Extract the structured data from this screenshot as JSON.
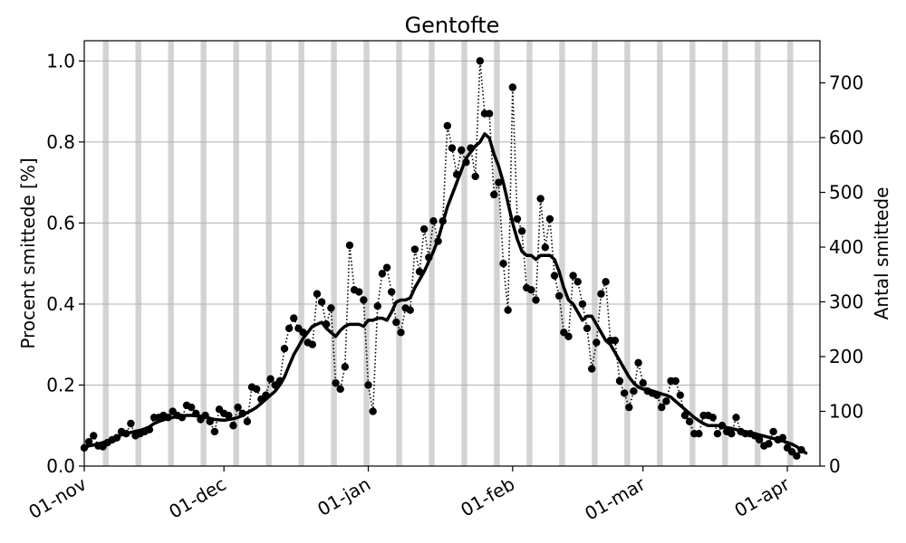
{
  "chart_data": {
    "type": "line",
    "title": "Gentofte",
    "ylabel_left": "Procent smittede [%]",
    "ylabel_right": "Antal smittede",
    "x_range": [
      "2020-11-01",
      "2021-04-08"
    ],
    "ylim_left": [
      0,
      1.05
    ],
    "ylim_right": [
      0,
      777
    ],
    "x_ticks": [
      {
        "date": "2020-11-01",
        "label": "01-nov"
      },
      {
        "date": "2020-12-01",
        "label": "01-dec"
      },
      {
        "date": "2021-01-01",
        "label": "01-jan"
      },
      {
        "date": "2021-02-01",
        "label": "01-feb"
      },
      {
        "date": "2021-03-01",
        "label": "01-mar"
      },
      {
        "date": "2021-04-01",
        "label": "01-apr"
      }
    ],
    "y_ticks_left": [
      {
        "value": 0.0,
        "label": "0.0"
      },
      {
        "value": 0.2,
        "label": "0.2"
      },
      {
        "value": 0.4,
        "label": "0.4"
      },
      {
        "value": 0.6,
        "label": "0.6"
      },
      {
        "value": 0.8,
        "label": "0.8"
      },
      {
        "value": 1.0,
        "label": "1.0"
      }
    ],
    "y_ticks_right": [
      {
        "value": 0,
        "label": "0"
      },
      {
        "value": 100,
        "label": "100"
      },
      {
        "value": 200,
        "label": "200"
      },
      {
        "value": 300,
        "label": "300"
      },
      {
        "value": 400,
        "label": "400"
      },
      {
        "value": 500,
        "label": "500"
      },
      {
        "value": 600,
        "label": "600"
      },
      {
        "value": 700,
        "label": "700"
      }
    ],
    "grid": "horizontal",
    "weekend_shading": {
      "color": "#d3d3d3",
      "dates": [
        "2020-11-05",
        "2020-11-12",
        "2020-11-19",
        "2020-11-26",
        "2020-12-03",
        "2020-12-10",
        "2020-12-17",
        "2020-12-24",
        "2020-12-31",
        "2021-01-07",
        "2021-01-14",
        "2021-01-21",
        "2021-01-28",
        "2021-02-04",
        "2021-02-11",
        "2021-02-18",
        "2021-02-25",
        "2021-03-04",
        "2021-03-11",
        "2021-03-18",
        "2021-03-25",
        "2021-04-01",
        "2021-04-08"
      ]
    },
    "series": [
      {
        "style": "dotted-markers",
        "color": "#000000",
        "start_date": "2020-11-01",
        "values": [
          0.045,
          0.06,
          0.075,
          0.05,
          0.048,
          0.058,
          0.065,
          0.07,
          0.085,
          0.08,
          0.105,
          0.075,
          0.08,
          0.085,
          0.09,
          0.12,
          0.12,
          0.125,
          0.12,
          0.135,
          0.125,
          0.12,
          0.15,
          0.145,
          0.13,
          0.115,
          0.125,
          0.11,
          0.085,
          0.14,
          0.13,
          0.125,
          0.1,
          0.145,
          0.13,
          0.11,
          0.195,
          0.19,
          0.165,
          0.175,
          0.215,
          0.2,
          0.21,
          0.29,
          0.34,
          0.365,
          0.34,
          0.33,
          0.305,
          0.3,
          0.425,
          0.405,
          0.35,
          0.39,
          0.205,
          0.19,
          0.245,
          0.545,
          0.435,
          0.43,
          0.41,
          0.2,
          0.135,
          0.395,
          0.475,
          0.49,
          0.43,
          0.355,
          0.33,
          0.39,
          0.385,
          0.535,
          0.48,
          0.585,
          0.515,
          0.605,
          0.555,
          0.605,
          0.84,
          0.785,
          0.72,
          0.78,
          0.75,
          0.785,
          0.715,
          1.0,
          0.87,
          0.87,
          0.67,
          0.7,
          0.5,
          0.385,
          0.935,
          0.61,
          0.58,
          0.44,
          0.435,
          0.41,
          0.66,
          0.54,
          0.61,
          0.47,
          0.42,
          0.33,
          0.32,
          0.47,
          0.455,
          0.4,
          0.34,
          0.24,
          0.305,
          0.425,
          0.455,
          0.31,
          0.31,
          0.21,
          0.18,
          0.145,
          0.185,
          0.255,
          0.205,
          0.185,
          0.18,
          0.175,
          0.145,
          0.16,
          0.21,
          0.21,
          0.175,
          0.125,
          0.11,
          0.08,
          0.08,
          0.125,
          0.125,
          0.12,
          0.08,
          0.1,
          0.085,
          0.08,
          0.12,
          0.085,
          0.08,
          0.08,
          0.075,
          0.065,
          0.05,
          0.055,
          0.085,
          0.065,
          0.07,
          0.045,
          0.035,
          0.025,
          0.04
        ]
      },
      {
        "style": "thick-line",
        "color": "#000000",
        "start_date": "2020-11-01",
        "values": [
          0.045,
          0.05,
          0.052,
          0.055,
          0.058,
          0.062,
          0.067,
          0.072,
          0.077,
          0.08,
          0.083,
          0.086,
          0.088,
          0.092,
          0.097,
          0.105,
          0.11,
          0.114,
          0.118,
          0.12,
          0.122,
          0.124,
          0.125,
          0.125,
          0.124,
          0.123,
          0.121,
          0.118,
          0.115,
          0.114,
          0.113,
          0.115,
          0.117,
          0.12,
          0.125,
          0.132,
          0.138,
          0.145,
          0.155,
          0.165,
          0.175,
          0.185,
          0.2,
          0.22,
          0.248,
          0.275,
          0.295,
          0.315,
          0.33,
          0.345,
          0.35,
          0.355,
          0.34,
          0.33,
          0.32,
          0.335,
          0.345,
          0.35,
          0.35,
          0.35,
          0.345,
          0.36,
          0.36,
          0.365,
          0.365,
          0.36,
          0.38,
          0.405,
          0.41,
          0.41,
          0.415,
          0.44,
          0.46,
          0.48,
          0.505,
          0.53,
          0.56,
          0.6,
          0.64,
          0.67,
          0.7,
          0.73,
          0.76,
          0.775,
          0.79,
          0.8,
          0.82,
          0.81,
          0.77,
          0.74,
          0.7,
          0.65,
          0.6,
          0.56,
          0.53,
          0.52,
          0.52,
          0.51,
          0.52,
          0.52,
          0.52,
          0.51,
          0.48,
          0.44,
          0.41,
          0.4,
          0.38,
          0.36,
          0.37,
          0.37,
          0.35,
          0.33,
          0.31,
          0.3,
          0.28,
          0.26,
          0.24,
          0.22,
          0.205,
          0.195,
          0.19,
          0.19,
          0.185,
          0.182,
          0.178,
          0.175,
          0.17,
          0.16,
          0.15,
          0.14,
          0.13,
          0.12,
          0.112,
          0.105,
          0.1,
          0.1,
          0.1,
          0.098,
          0.095,
          0.093,
          0.09,
          0.087,
          0.085,
          0.082,
          0.08,
          0.077,
          0.074,
          0.071,
          0.068,
          0.065,
          0.062,
          0.058,
          0.054,
          0.048,
          0.04,
          0.032
        ]
      }
    ]
  }
}
